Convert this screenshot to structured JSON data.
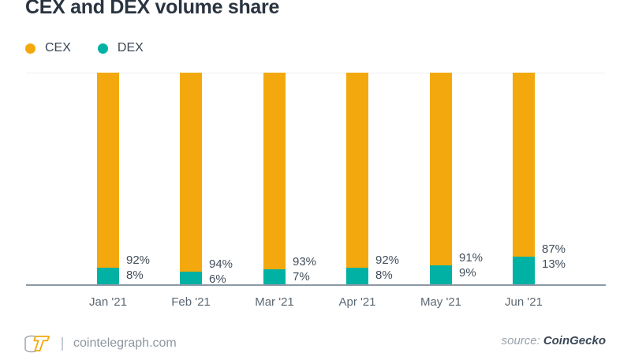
{
  "title": "CEX and DEX volume share",
  "legend": [
    {
      "label": "CEX",
      "color": "#f3a90d"
    },
    {
      "label": "DEX",
      "color": "#00b1a4"
    }
  ],
  "chart_data": {
    "type": "bar",
    "stacked": true,
    "title": "CEX and DEX volume share",
    "categories": [
      "Jan '21",
      "Feb '21",
      "Mar '21",
      "Apr '21",
      "May '21",
      "Jun '21"
    ],
    "series": [
      {
        "name": "CEX",
        "color": "#f3a90d",
        "values": [
          92,
          94,
          93,
          92,
          91,
          87
        ]
      },
      {
        "name": "DEX",
        "color": "#00b1a4",
        "values": [
          8,
          6,
          7,
          8,
          9,
          13
        ]
      }
    ],
    "value_suffix": "%",
    "ylim": [
      0,
      100
    ],
    "grid": "top-line-only",
    "legend_position": "top-left",
    "bar_value_labels": "right-of-bar-at-segment-boundary"
  },
  "footer": {
    "logo": "cointelegraph-coins-logo",
    "site": "cointelegraph.com",
    "source_label": "source:",
    "source_value": "CoinGecko"
  }
}
